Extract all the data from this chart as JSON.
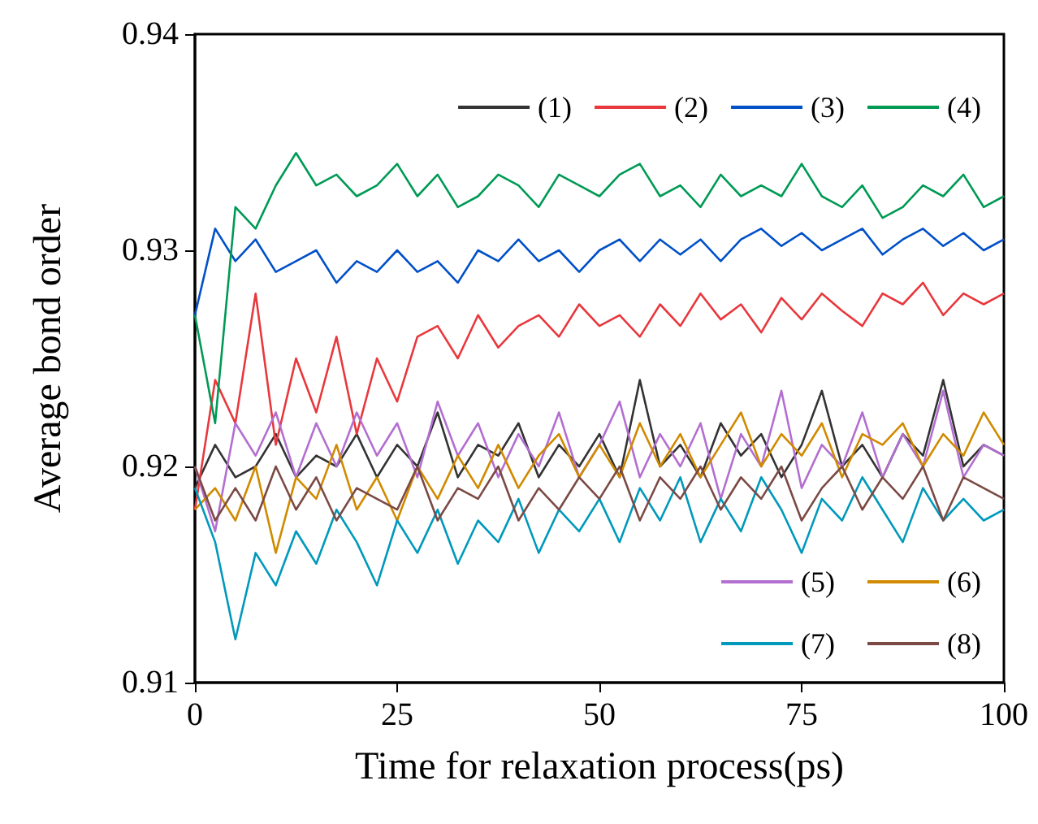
{
  "chart_data": {
    "type": "line",
    "xlabel": "Time for relaxation process(ps)",
    "ylabel": "Average bond order",
    "xlim": [
      0,
      100
    ],
    "xticks": [
      0,
      25,
      50,
      75,
      100
    ],
    "ylim": [
      0.91,
      0.94
    ],
    "yticks": [
      0.91,
      0.92,
      0.93,
      0.94
    ],
    "grid": false,
    "legend": "right",
    "marker": "none",
    "line_style": "solid",
    "x": [
      0,
      2.5,
      5,
      7.5,
      10,
      12.5,
      15,
      17.5,
      20,
      22.5,
      25,
      27.5,
      30,
      32.5,
      35,
      37.5,
      40,
      42.5,
      45,
      47.5,
      50,
      52.5,
      55,
      57.5,
      60,
      62.5,
      65,
      67.5,
      70,
      72.5,
      75,
      77.5,
      80,
      82.5,
      85,
      87.5,
      90,
      92.5,
      95,
      97.5,
      100
    ],
    "series": [
      {
        "name": "(1)",
        "color": "#333333",
        "values": [
          0.919,
          0.921,
          0.9195,
          0.92,
          0.9215,
          0.9195,
          0.9205,
          0.92,
          0.9215,
          0.9195,
          0.921,
          0.92,
          0.9225,
          0.9195,
          0.921,
          0.9205,
          0.922,
          0.9195,
          0.921,
          0.92,
          0.9215,
          0.9195,
          0.924,
          0.92,
          0.921,
          0.9195,
          0.922,
          0.9205,
          0.9215,
          0.9195,
          0.921,
          0.9235,
          0.92,
          0.921,
          0.9195,
          0.9215,
          0.9205,
          0.924,
          0.92,
          0.921,
          0.9205
        ]
      },
      {
        "name": "(2)",
        "color": "#e8383d",
        "values": [
          0.918,
          0.924,
          0.922,
          0.928,
          0.921,
          0.925,
          0.9225,
          0.926,
          0.9215,
          0.925,
          0.923,
          0.926,
          0.9265,
          0.925,
          0.927,
          0.9255,
          0.9265,
          0.927,
          0.926,
          0.9275,
          0.9265,
          0.927,
          0.926,
          0.9275,
          0.9265,
          0.928,
          0.9268,
          0.9275,
          0.9262,
          0.9278,
          0.9268,
          0.928,
          0.9272,
          0.9265,
          0.928,
          0.9275,
          0.9285,
          0.927,
          0.928,
          0.9275,
          0.928
        ]
      },
      {
        "name": "(3)",
        "color": "#0050c8",
        "values": [
          0.927,
          0.931,
          0.9295,
          0.9305,
          0.929,
          0.9295,
          0.93,
          0.9285,
          0.9295,
          0.929,
          0.93,
          0.929,
          0.9295,
          0.9285,
          0.93,
          0.9295,
          0.9305,
          0.9295,
          0.93,
          0.929,
          0.93,
          0.9305,
          0.9295,
          0.9305,
          0.9298,
          0.9305,
          0.9295,
          0.9305,
          0.931,
          0.9302,
          0.9308,
          0.93,
          0.9305,
          0.931,
          0.9298,
          0.9305,
          0.931,
          0.9302,
          0.9308,
          0.93,
          0.9305
        ]
      },
      {
        "name": "(4)",
        "color": "#009a55",
        "values": [
          0.927,
          0.922,
          0.932,
          0.931,
          0.933,
          0.9345,
          0.933,
          0.9335,
          0.9325,
          0.933,
          0.934,
          0.9325,
          0.9335,
          0.932,
          0.9325,
          0.9335,
          0.933,
          0.932,
          0.9335,
          0.933,
          0.9325,
          0.9335,
          0.934,
          0.9325,
          0.933,
          0.932,
          0.9335,
          0.9325,
          0.933,
          0.9325,
          0.934,
          0.9325,
          0.932,
          0.933,
          0.9315,
          0.932,
          0.933,
          0.9325,
          0.9335,
          0.932,
          0.9325
        ]
      },
      {
        "name": "(5)",
        "color": "#b36fd0",
        "values": [
          0.92,
          0.917,
          0.922,
          0.9205,
          0.9225,
          0.9195,
          0.922,
          0.92,
          0.9225,
          0.9205,
          0.922,
          0.9195,
          0.923,
          0.9205,
          0.922,
          0.9195,
          0.9215,
          0.92,
          0.9225,
          0.9195,
          0.921,
          0.923,
          0.9195,
          0.9215,
          0.92,
          0.922,
          0.9185,
          0.9215,
          0.92,
          0.9235,
          0.919,
          0.921,
          0.92,
          0.9225,
          0.9195,
          0.9215,
          0.92,
          0.9235,
          0.9195,
          0.921,
          0.9205
        ]
      },
      {
        "name": "(6)",
        "color": "#d08a00",
        "values": [
          0.918,
          0.919,
          0.9175,
          0.92,
          0.916,
          0.9195,
          0.9185,
          0.921,
          0.918,
          0.9195,
          0.9175,
          0.92,
          0.9185,
          0.9205,
          0.919,
          0.921,
          0.919,
          0.9205,
          0.9215,
          0.9195,
          0.921,
          0.9195,
          0.922,
          0.92,
          0.9215,
          0.9195,
          0.921,
          0.9225,
          0.92,
          0.9215,
          0.9205,
          0.922,
          0.9195,
          0.9215,
          0.921,
          0.922,
          0.92,
          0.9215,
          0.9205,
          0.9225,
          0.921
        ]
      },
      {
        "name": "(7)",
        "color": "#0099bb",
        "values": [
          0.919,
          0.9165,
          0.912,
          0.916,
          0.9145,
          0.917,
          0.9155,
          0.918,
          0.9165,
          0.9145,
          0.9175,
          0.916,
          0.918,
          0.9155,
          0.9175,
          0.9165,
          0.9185,
          0.916,
          0.918,
          0.917,
          0.9185,
          0.9165,
          0.919,
          0.9175,
          0.9195,
          0.9165,
          0.9185,
          0.917,
          0.9195,
          0.918,
          0.916,
          0.9185,
          0.9175,
          0.9195,
          0.918,
          0.9165,
          0.919,
          0.9175,
          0.9185,
          0.9175,
          0.918
        ]
      },
      {
        "name": "(8)",
        "color": "#7b4a45",
        "values": [
          0.92,
          0.9175,
          0.919,
          0.9175,
          0.92,
          0.918,
          0.9195,
          0.9175,
          0.919,
          0.9185,
          0.918,
          0.92,
          0.9175,
          0.919,
          0.9185,
          0.92,
          0.9175,
          0.919,
          0.918,
          0.9195,
          0.9185,
          0.92,
          0.9175,
          0.9195,
          0.9185,
          0.92,
          0.918,
          0.9195,
          0.9185,
          0.92,
          0.9175,
          0.919,
          0.92,
          0.918,
          0.9195,
          0.9185,
          0.92,
          0.9175,
          0.9195,
          0.919,
          0.9185
        ]
      }
    ]
  }
}
